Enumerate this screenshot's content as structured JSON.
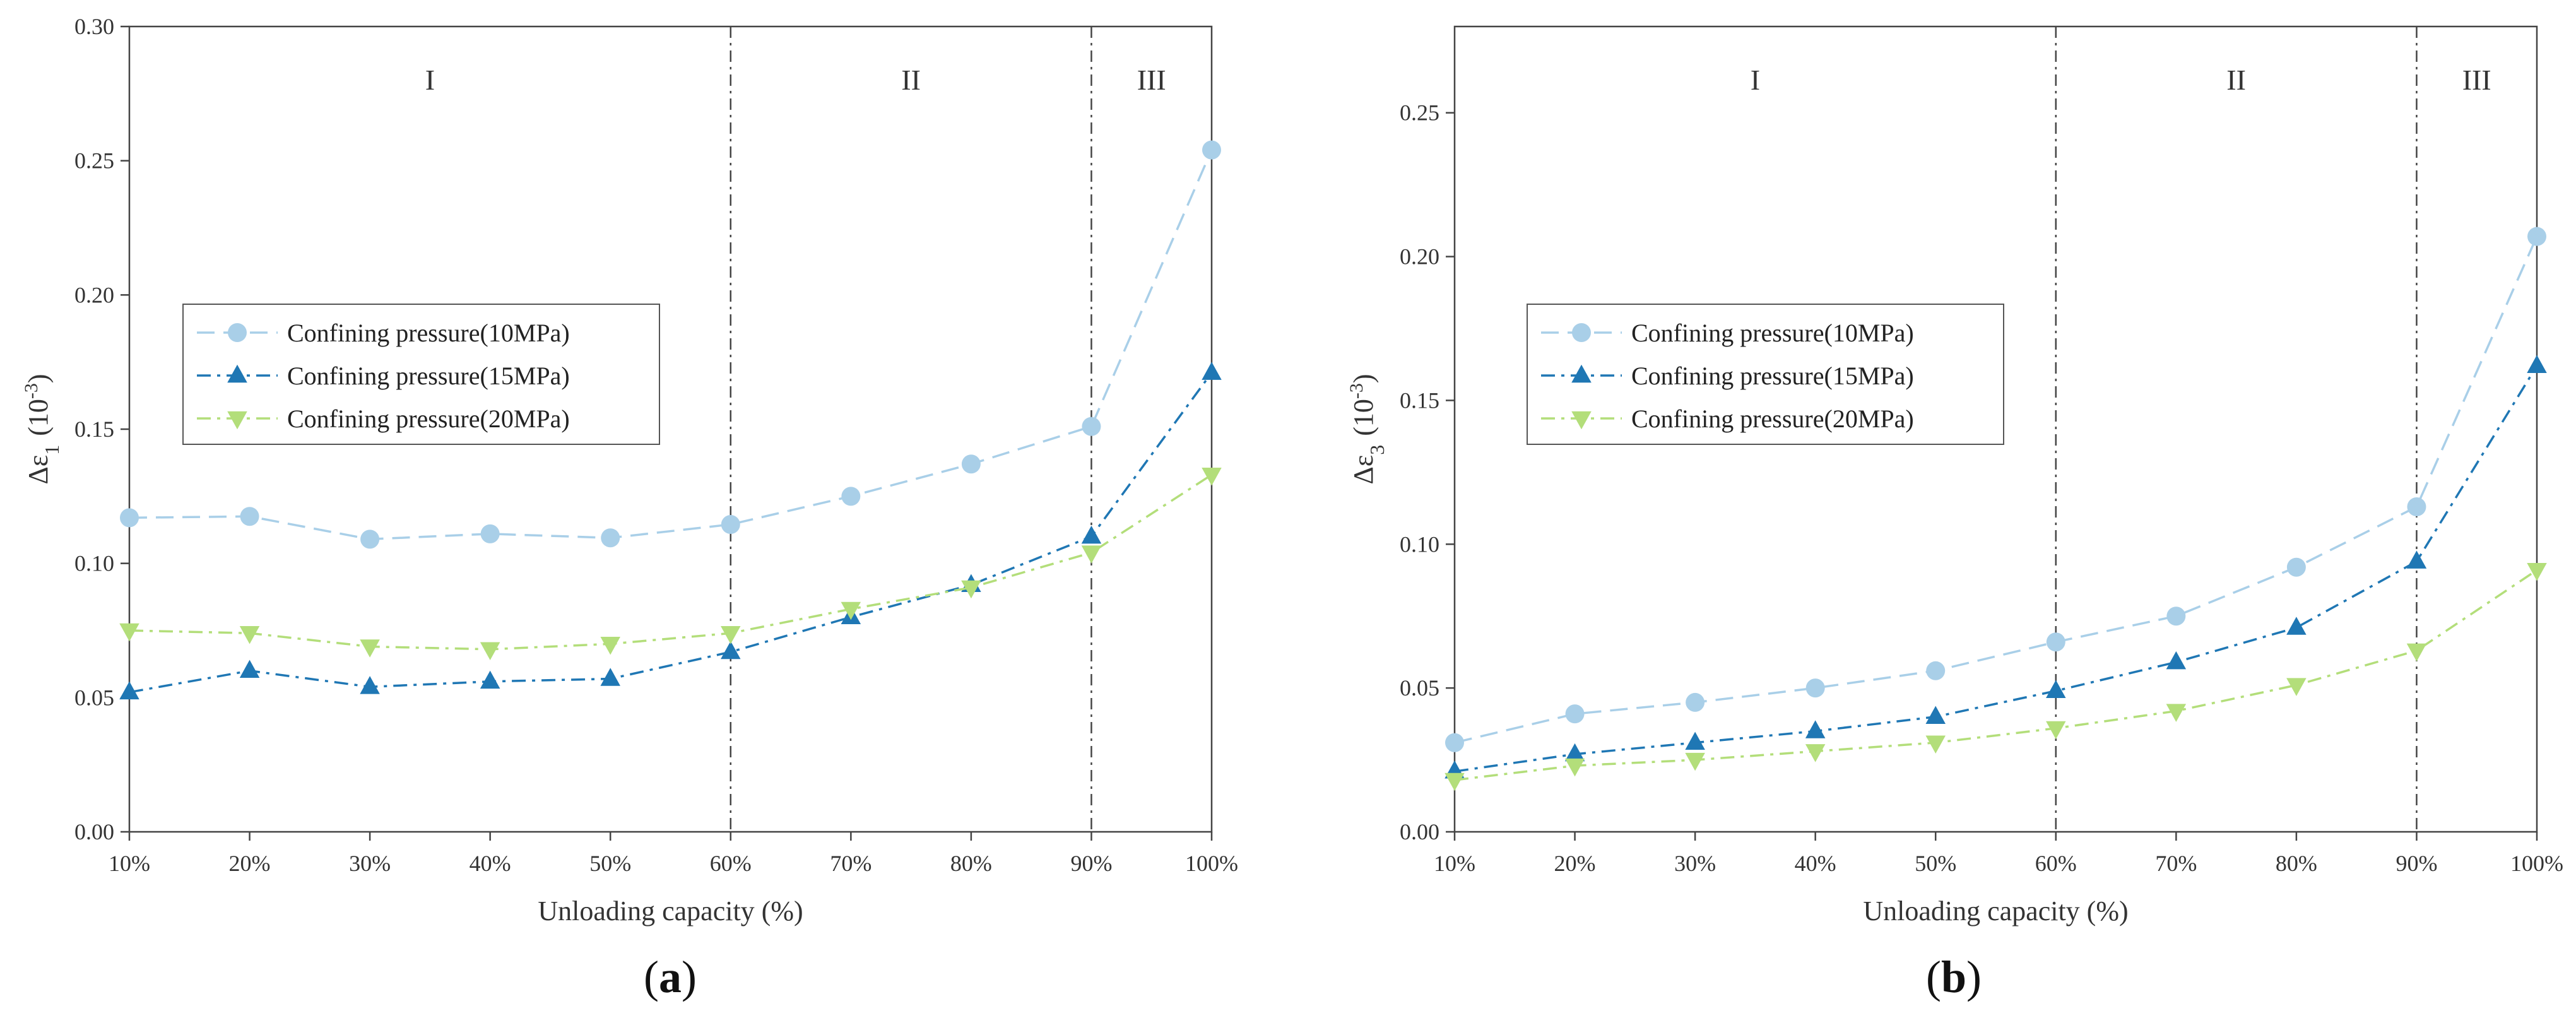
{
  "chart_data": [
    {
      "type": "line",
      "panel_label": "a",
      "categories": [
        "10%",
        "20%",
        "30%",
        "40%",
        "50%",
        "60%",
        "70%",
        "80%",
        "90%",
        "100%"
      ],
      "xlabel": "Unloading capacity (%)",
      "ylabel": {
        "base": "Δε",
        "subscript": "1",
        "unit_prefix": "(10",
        "unit_exp": "-3",
        "unit_suffix": ")"
      },
      "ylim": [
        0,
        0.3
      ],
      "yticks": [
        0.0,
        0.05,
        0.1,
        0.15,
        0.2,
        0.25,
        0.3
      ],
      "ytick_labels": [
        "0.00",
        "0.05",
        "0.10",
        "0.15",
        "0.20",
        "0.25",
        "0.30"
      ],
      "regions": [
        {
          "label": "I",
          "from": "10%",
          "to": "60%"
        },
        {
          "label": "II",
          "from": "60%",
          "to": "90%"
        },
        {
          "label": "III",
          "from": "90%",
          "to": "100%"
        }
      ],
      "divider_positions": [
        "60%",
        "90%"
      ],
      "legend_position": "center-left",
      "series": [
        {
          "name": "Confining pressure(10MPa)",
          "marker": "circle",
          "dash": "dashed",
          "color": "#a9cfe8",
          "values": [
            0.117,
            0.1175,
            0.109,
            0.111,
            0.1095,
            0.1145,
            0.125,
            0.137,
            0.151,
            0.254
          ]
        },
        {
          "name": "Confining pressure(15MPa)",
          "marker": "triangle-up",
          "dash": "dashdot",
          "color": "#1f77b4",
          "values": [
            0.052,
            0.06,
            0.054,
            0.056,
            0.057,
            0.067,
            0.08,
            0.092,
            0.11,
            0.171
          ]
        },
        {
          "name": "Confining pressure(20MPa)",
          "marker": "triangle-down",
          "dash": "dashdot",
          "color": "#b3de7a",
          "values": [
            0.075,
            0.074,
            0.069,
            0.068,
            0.07,
            0.074,
            0.083,
            0.091,
            0.104,
            0.133
          ]
        }
      ]
    },
    {
      "type": "line",
      "panel_label": "b",
      "categories": [
        "10%",
        "20%",
        "30%",
        "40%",
        "50%",
        "60%",
        "70%",
        "80%",
        "90%",
        "100%"
      ],
      "xlabel": "Unloading capacity (%)",
      "ylabel": {
        "base": "Δε",
        "subscript": "3",
        "unit_prefix": "(10",
        "unit_exp": "-3",
        "unit_suffix": ")"
      },
      "ylim": [
        0,
        0.28
      ],
      "yticks": [
        0.0,
        0.05,
        0.1,
        0.15,
        0.2,
        0.25
      ],
      "ytick_labels": [
        "0.00",
        "0.05",
        "0.10",
        "0.15",
        "0.20",
        "0.25"
      ],
      "regions": [
        {
          "label": "I",
          "from": "10%",
          "to": "60%"
        },
        {
          "label": "II",
          "from": "60%",
          "to": "90%"
        },
        {
          "label": "III",
          "from": "90%",
          "to": "100%"
        }
      ],
      "divider_positions": [
        "60%",
        "90%"
      ],
      "legend_position": "center-left",
      "series": [
        {
          "name": "Confining pressure(10MPa)",
          "marker": "circle",
          "dash": "dashed",
          "color": "#a9cfe8",
          "values": [
            0.031,
            0.041,
            0.045,
            0.05,
            0.056,
            0.066,
            0.075,
            0.092,
            0.113,
            0.207
          ]
        },
        {
          "name": "Confining pressure(15MPa)",
          "marker": "triangle-up",
          "dash": "dashdot",
          "color": "#1f77b4",
          "values": [
            0.021,
            0.027,
            0.031,
            0.035,
            0.04,
            0.049,
            0.059,
            0.071,
            0.094,
            0.162
          ]
        },
        {
          "name": "Confining pressure(20MPa)",
          "marker": "triangle-down",
          "dash": "dashdot",
          "color": "#b3de7a",
          "values": [
            0.018,
            0.023,
            0.025,
            0.028,
            0.031,
            0.036,
            0.042,
            0.051,
            0.063,
            0.091
          ]
        }
      ]
    }
  ]
}
